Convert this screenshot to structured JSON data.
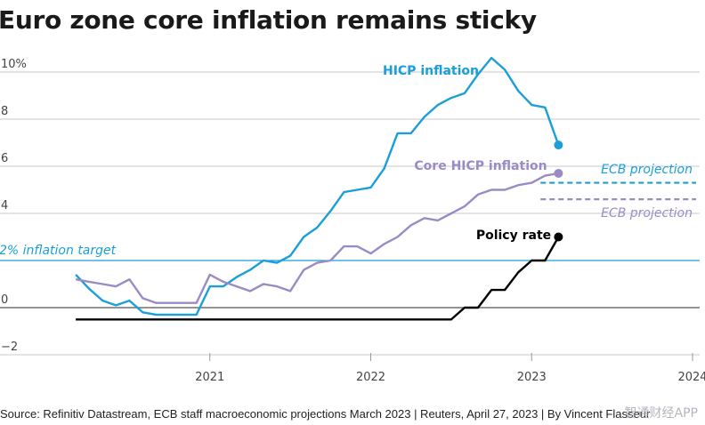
{
  "title": "Euro zone core inflation remains sticky",
  "source": "Source: Refinitiv Datastream, ECB staff macroeconomic projections March 2023 | Reuters, April 27, 2023 | By Vincent Flasseur",
  "watermark": "智通财经APP",
  "colors": {
    "hicp": "#1a9fd8",
    "core": "#9a8bc4",
    "policy": "#000000",
    "target": "#1a9fd8",
    "grid": "#c8c8c8",
    "zero": "#555555"
  },
  "chart_data": {
    "type": "line",
    "title": "Euro zone core inflation remains sticky",
    "xlim": [
      "2020-01",
      "2024-01"
    ],
    "ylim": [
      -2,
      11
    ],
    "y_ticks": [
      {
        "value": 10,
        "label": "10%"
      },
      {
        "value": 8,
        "label": "8"
      },
      {
        "value": 6,
        "label": "6"
      },
      {
        "value": 4,
        "label": "4"
      },
      {
        "value": 2,
        "label": "2"
      },
      {
        "value": 0,
        "label": "0"
      },
      {
        "value": -2,
        "label": "−2"
      }
    ],
    "x_ticks": [
      {
        "date": "2021-01",
        "label": "2021"
      },
      {
        "date": "2022-01",
        "label": "2022"
      },
      {
        "date": "2023-01",
        "label": "2023"
      },
      {
        "date": "2024-01",
        "label": "2024"
      }
    ],
    "grid": true,
    "series": [
      {
        "name": "HICP inflation",
        "key": "hicp",
        "x": [
          "2020-03",
          "2020-04",
          "2020-05",
          "2020-06",
          "2020-07",
          "2020-08",
          "2020-09",
          "2020-10",
          "2020-11",
          "2020-12",
          "2021-01",
          "2021-02",
          "2021-03",
          "2021-04",
          "2021-05",
          "2021-06",
          "2021-07",
          "2021-08",
          "2021-09",
          "2021-10",
          "2021-11",
          "2021-12",
          "2022-01",
          "2022-02",
          "2022-03",
          "2022-04",
          "2022-05",
          "2022-06",
          "2022-07",
          "2022-08",
          "2022-09",
          "2022-10",
          "2022-11",
          "2022-12",
          "2023-01",
          "2023-02",
          "2023-03"
        ],
        "y": [
          1.4,
          0.8,
          0.3,
          0.1,
          0.3,
          -0.2,
          -0.3,
          -0.3,
          -0.3,
          -0.3,
          0.9,
          0.9,
          1.3,
          1.6,
          2.0,
          1.9,
          2.2,
          3.0,
          3.4,
          4.1,
          4.9,
          5.0,
          5.1,
          5.9,
          7.4,
          7.4,
          8.1,
          8.6,
          8.9,
          9.1,
          9.9,
          10.6,
          10.1,
          9.2,
          8.6,
          8.5,
          6.9
        ]
      },
      {
        "name": "Core HICP inflation",
        "key": "core",
        "x": [
          "2020-03",
          "2020-04",
          "2020-05",
          "2020-06",
          "2020-07",
          "2020-08",
          "2020-09",
          "2020-10",
          "2020-11",
          "2020-12",
          "2021-01",
          "2021-02",
          "2021-03",
          "2021-04",
          "2021-05",
          "2021-06",
          "2021-07",
          "2021-08",
          "2021-09",
          "2021-10",
          "2021-11",
          "2021-12",
          "2022-01",
          "2022-02",
          "2022-03",
          "2022-04",
          "2022-05",
          "2022-06",
          "2022-07",
          "2022-08",
          "2022-09",
          "2022-10",
          "2022-11",
          "2022-12",
          "2023-01",
          "2023-02",
          "2023-03"
        ],
        "y": [
          1.2,
          1.1,
          1.0,
          0.9,
          1.2,
          0.4,
          0.2,
          0.2,
          0.2,
          0.2,
          1.4,
          1.1,
          0.9,
          0.7,
          1.0,
          0.9,
          0.7,
          1.6,
          1.9,
          2.0,
          2.6,
          2.6,
          2.3,
          2.7,
          3.0,
          3.5,
          3.8,
          3.7,
          4.0,
          4.3,
          4.8,
          5.0,
          5.0,
          5.2,
          5.3,
          5.6,
          5.7
        ]
      },
      {
        "name": "Policy rate",
        "key": "policy",
        "x": [
          "2020-03",
          "2022-07",
          "2022-08",
          "2022-09",
          "2022-10",
          "2022-11",
          "2022-12",
          "2023-01",
          "2023-02",
          "2023-03"
        ],
        "y": [
          -0.5,
          -0.5,
          0.0,
          0.0,
          0.75,
          0.75,
          1.5,
          2.0,
          2.0,
          3.0
        ]
      }
    ],
    "projections": [
      {
        "label": "ECB projection",
        "key": "hicp",
        "value": 5.3,
        "x_start": "2023-01",
        "x_end": "2024-01"
      },
      {
        "label": "ECB projection",
        "key": "core",
        "value": 4.6,
        "x_start": "2023-01",
        "x_end": "2024-01"
      }
    ],
    "reference_line": {
      "label": "2% inflation target",
      "value": 2
    }
  }
}
